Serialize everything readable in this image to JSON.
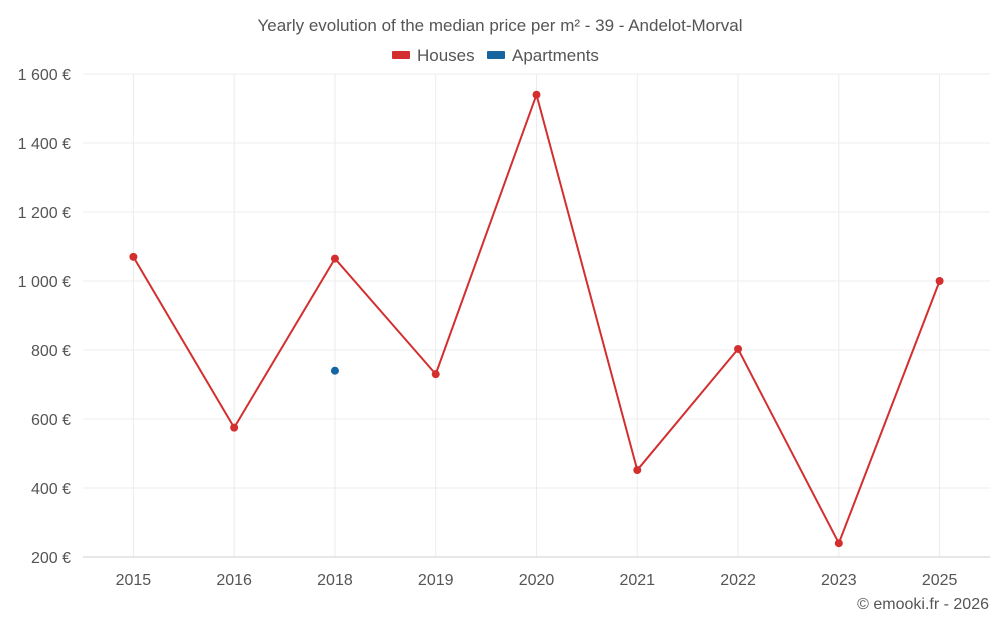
{
  "chart_data": {
    "type": "line",
    "title": "Yearly evolution of the median price per m² - 39 - Andelot-Morval",
    "categories": [
      "2015",
      "2016",
      "2018",
      "2019",
      "2020",
      "2021",
      "2022",
      "2023",
      "2025"
    ],
    "series": [
      {
        "name": "Houses",
        "color": "#d32f2f",
        "values": [
          1070,
          575,
          1065,
          730,
          1540,
          452,
          803,
          240,
          1000
        ]
      },
      {
        "name": "Apartments",
        "color": "#1565a0",
        "values": [
          null,
          null,
          740,
          null,
          null,
          null,
          null,
          null,
          null
        ]
      }
    ],
    "y_ticks": [
      200,
      400,
      600,
      800,
      1000,
      1200,
      1400,
      1600
    ],
    "y_tick_labels": [
      "200 €",
      "400 €",
      "600 €",
      "800 €",
      "1 000 €",
      "1 200 €",
      "1 400 €",
      "1 600 €"
    ],
    "ylim": [
      200,
      1600
    ],
    "xlabel": "",
    "ylabel": "",
    "legend_position": "top-center",
    "grid": true
  },
  "credit": "© emooki.fr - 2026"
}
